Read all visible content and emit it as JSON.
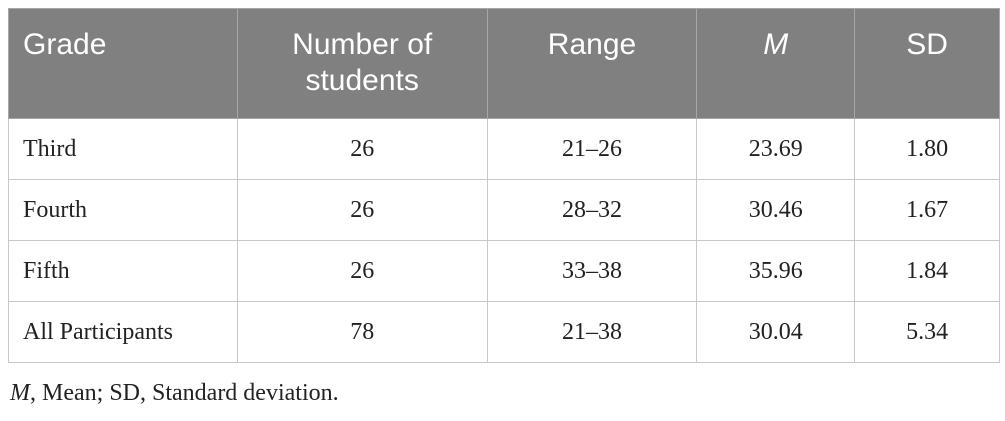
{
  "table": {
    "header": [
      "Grade",
      "Number of students",
      "Range",
      "M",
      "SD"
    ],
    "rows": [
      [
        "Third",
        "26",
        "21–26",
        "23.69",
        "1.80"
      ],
      [
        "Fourth",
        "26",
        "28–32",
        "30.46",
        "1.67"
      ],
      [
        "Fifth",
        "26",
        "33–38",
        "35.96",
        "1.84"
      ],
      [
        "All Participants",
        "78",
        "21–38",
        "30.04",
        "5.34"
      ]
    ]
  },
  "footnote": {
    "symbol": "M",
    "text": ", Mean; SD, Standard deviation."
  }
}
